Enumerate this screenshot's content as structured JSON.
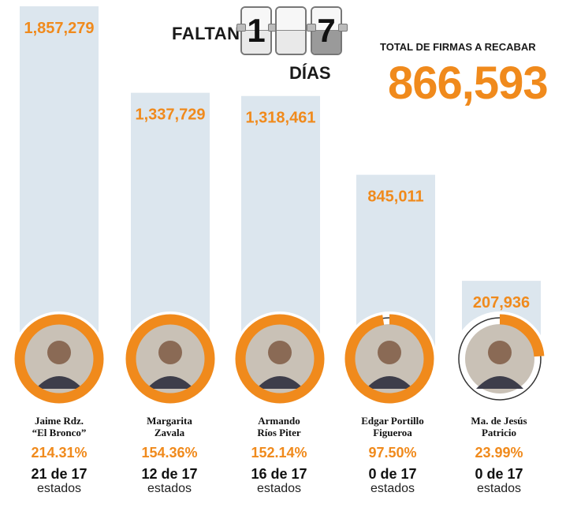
{
  "header": {
    "faltan_label": "FALTAN",
    "days_digits": [
      "1",
      "7"
    ],
    "dias_label": "DÍAS",
    "total_label": "TOTAL DE FIRMAS A RECABAR",
    "total_value": "866,593"
  },
  "colors": {
    "accent": "#f08a1c",
    "bar": "#dce6ee",
    "text": "#111111"
  },
  "chart_data": {
    "type": "bar",
    "title": "",
    "categories": [
      "Jaime Rdz. “El Bronco”",
      "Margarita Zavala",
      "Armando Ríos Piter",
      "Edgar Portillo Figueroa",
      "Ma. de Jesús Patricio"
    ],
    "values": [
      1857279,
      1337729,
      1318461,
      845011,
      207936
    ],
    "value_labels": [
      "1,857,279",
      "1,337,729",
      "1,318,461",
      "845,011",
      "207,936"
    ],
    "ring_percent": [
      214.31,
      154.36,
      152.14,
      97.5,
      23.99
    ],
    "ylim": [
      0,
      1857279
    ],
    "grid": false
  },
  "candidates": [
    {
      "name_line1": "Jaime Rdz.",
      "name_line2": "“El Bronco”",
      "percent": "214.31%",
      "states": "21 de 17",
      "estados": "estados"
    },
    {
      "name_line1": "Margarita",
      "name_line2": "Zavala",
      "percent": "154.36%",
      "states": "12 de 17",
      "estados": "estados"
    },
    {
      "name_line1": "Armando",
      "name_line2": "Ríos Piter",
      "percent": "152.14%",
      "states": "16 de 17",
      "estados": "estados"
    },
    {
      "name_line1": "Edgar Portillo",
      "name_line2": "Figueroa",
      "percent": "97.50%",
      "states": "0 de 17",
      "estados": "estados"
    },
    {
      "name_line1": "Ma. de Jesús",
      "name_line2": "Patricio",
      "percent": "23.99%",
      "states": "0 de 17",
      "estados": "estados"
    }
  ]
}
